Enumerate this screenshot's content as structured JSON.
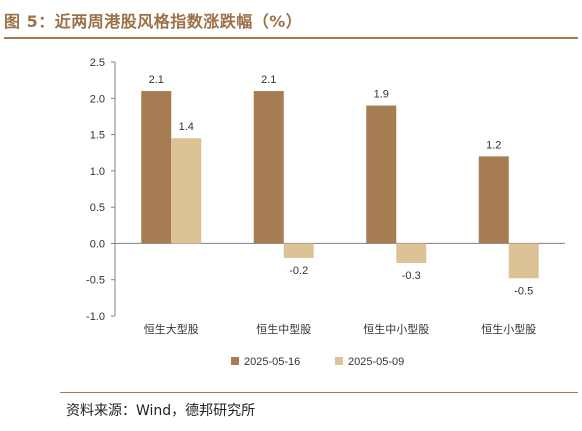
{
  "figure": {
    "title": "图 5：近两周港股风格指数涨跌幅（%）",
    "source": "资料来源：Wind，德邦研究所"
  },
  "colors": {
    "series1": "#a67c52",
    "series2": "#dcc395",
    "title": "#9b7148",
    "rule": "#a47a52",
    "axis": "#808080"
  },
  "chart_data": {
    "type": "bar",
    "title": "",
    "xlabel": "",
    "ylabel": "",
    "categories": [
      "恒生大型股",
      "恒生中型股",
      "恒生中小型股",
      "恒生小型股"
    ],
    "series": [
      {
        "name": "2025-05-16",
        "values": [
          2.1,
          2.1,
          1.9,
          1.2
        ],
        "labels": [
          "2.1",
          "2.1",
          "1.9",
          "1.2"
        ]
      },
      {
        "name": "2025-05-09",
        "values": [
          1.45,
          -0.2,
          -0.27,
          -0.48
        ],
        "labels": [
          "1.4",
          "-0.2",
          "-0.3",
          "-0.5"
        ]
      }
    ],
    "ylim": [
      -1.0,
      2.5
    ],
    "yticks": [
      "-1.0",
      "-0.5",
      "0.0",
      "0.5",
      "1.0",
      "1.5",
      "2.0",
      "2.5"
    ],
    "grid": false,
    "legend_position": "bottom"
  }
}
